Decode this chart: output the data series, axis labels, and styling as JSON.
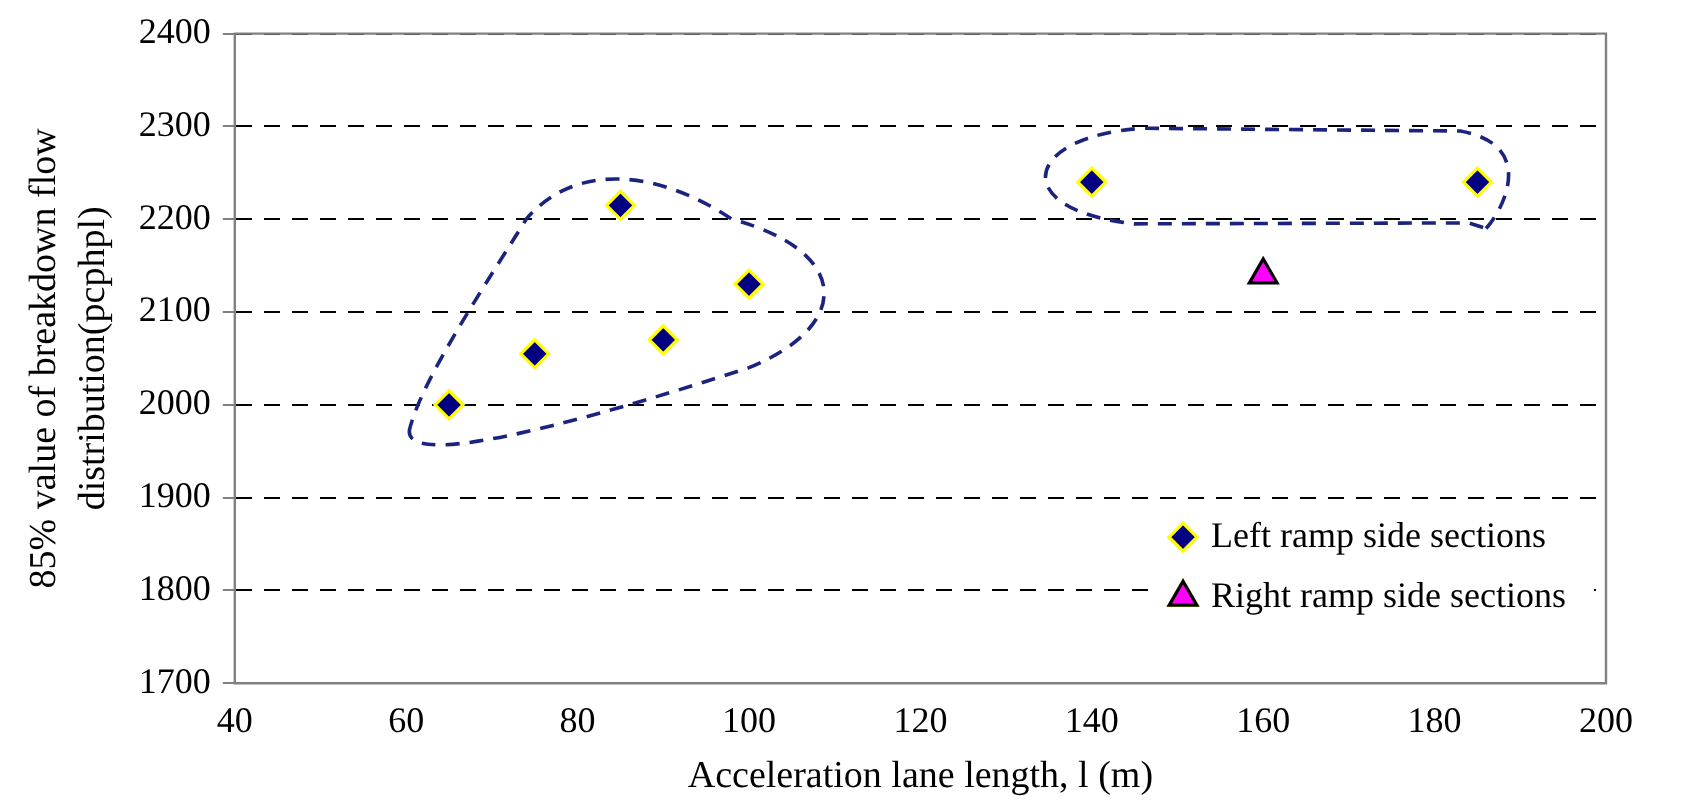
{
  "chart_data": {
    "type": "scatter",
    "xlabel": "Acceleration lane length, l (m)",
    "ylabel": "85% value of breakdown flow distribution(pcphpl)",
    "xlim": [
      40,
      200
    ],
    "xticks": [
      40,
      60,
      80,
      100,
      120,
      140,
      160,
      180,
      200
    ],
    "ylim": [
      1700,
      2400
    ],
    "yticks": [
      1700,
      1800,
      1900,
      2000,
      2100,
      2200,
      2300,
      2400
    ],
    "grid": "y",
    "legend": "bottom right",
    "series": [
      {
        "name": "Left ramp side sections",
        "color": "#000080",
        "marker": "diamond",
        "x": [
          65,
          75,
          85,
          90,
          100,
          140,
          185
        ],
        "values": [
          2000,
          2055,
          2215,
          2070,
          2130,
          2240,
          2240
        ]
      },
      {
        "name": "Right ramp side sections",
        "color": "#ff00ff",
        "marker": "triangle",
        "x": [
          160
        ],
        "values": [
          2140
        ]
      }
    ]
  }
}
